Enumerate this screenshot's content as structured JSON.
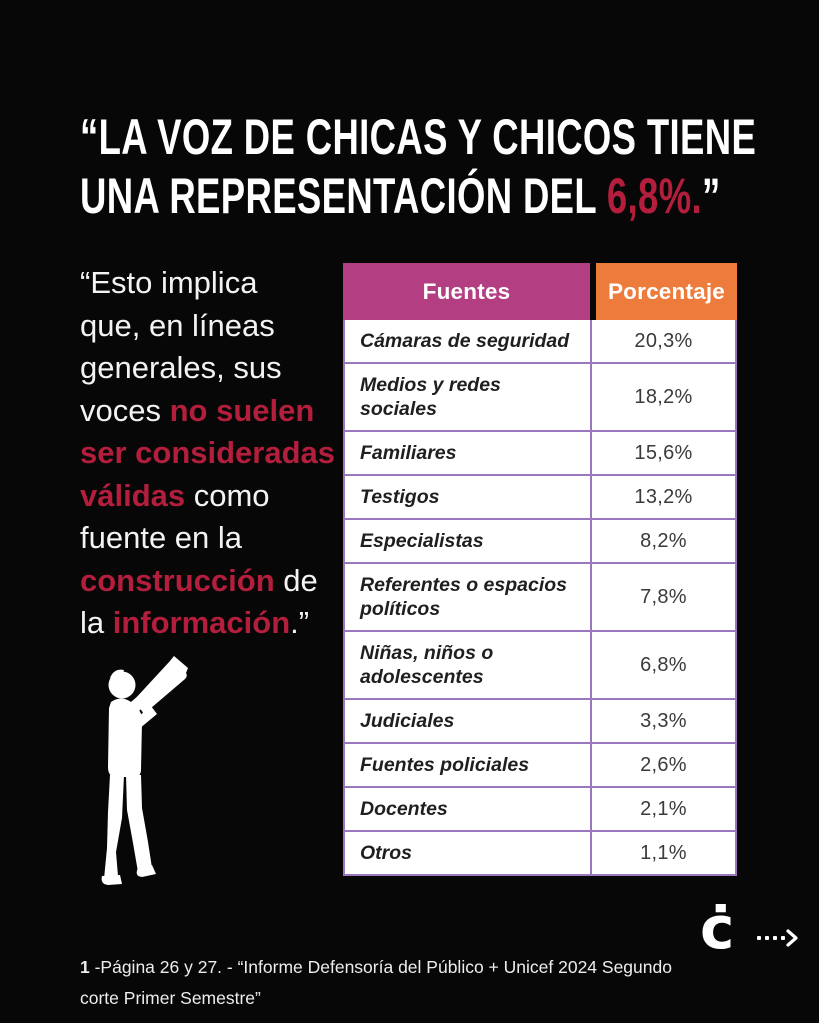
{
  "page": {
    "background": "#070707",
    "accent_red": "#b21e3c",
    "header_magenta": "#b43e82",
    "header_orange": "#ed7c3c",
    "table_border_purple": "#9b77bf"
  },
  "title": {
    "line1": "“LA VOZ DE CHICAS Y CHICOS TIENE",
    "line2_prefix": "UNA REPRESENTACIÓN DEL ",
    "line2_highlight": "6,8%.",
    "line2_suffix": "”"
  },
  "quote": {
    "lines": [
      [
        {
          "t": "“Esto implica",
          "red": false
        }
      ],
      [
        {
          "t": "que, en líneas",
          "red": false
        }
      ],
      [
        {
          "t": "generales, sus",
          "red": false
        }
      ],
      [
        {
          "t": "voces ",
          "red": false
        },
        {
          "t": "no suelen",
          "red": true
        }
      ],
      [
        {
          "t": "ser consideradas",
          "red": true
        }
      ],
      [
        {
          "t": "válidas",
          "red": true
        },
        {
          "t": " como",
          "red": false
        }
      ],
      [
        {
          "t": "fuente en la",
          "red": false
        }
      ],
      [
        {
          "t": "construcción",
          "red": true
        },
        {
          "t": " de",
          "red": false
        }
      ],
      [
        {
          "t": "la ",
          "red": false
        },
        {
          "t": "información",
          "red": true
        },
        {
          "t": ".”",
          "red": false
        }
      ]
    ]
  },
  "table": {
    "headers": {
      "fuentes": "Fuentes",
      "porcentaje": "Porcentaje"
    },
    "rows": [
      {
        "fuente": "Cámaras de seguridad",
        "porcentaje": "20,3%"
      },
      {
        "fuente": "Medios y redes sociales",
        "porcentaje": "18,2%"
      },
      {
        "fuente": "Familiares",
        "porcentaje": "15,6%"
      },
      {
        "fuente": "Testigos",
        "porcentaje": "13,2%"
      },
      {
        "fuente": "Especialistas",
        "porcentaje": "8,2%"
      },
      {
        "fuente": "Referentes o espacios políticos",
        "porcentaje": "7,8%"
      },
      {
        "fuente": "Niñas, niños o adolescentes",
        "porcentaje": "6,8%"
      },
      {
        "fuente": "Judiciales",
        "porcentaje": "3,3%"
      },
      {
        "fuente": "Fuentes policiales",
        "porcentaje": "2,6%"
      },
      {
        "fuente": "Docentes",
        "porcentaje": "2,1%"
      },
      {
        "fuente": "Otros",
        "porcentaje": "1,1%"
      }
    ]
  },
  "chart_data": {
    "type": "table",
    "title": "Fuentes / Porcentaje",
    "categories": [
      "Cámaras de seguridad",
      "Medios y redes sociales",
      "Familiares",
      "Testigos",
      "Especialistas",
      "Referentes o espacios políticos",
      "Niñas, niños o adolescentes",
      "Judiciales",
      "Fuentes policiales",
      "Docentes",
      "Otros"
    ],
    "values": [
      20.3,
      18.2,
      15.6,
      13.2,
      8.2,
      7.8,
      6.8,
      3.3,
      2.6,
      2.1,
      1.1
    ],
    "value_unit": "%"
  },
  "footnote": {
    "marker": "1",
    "text": " -Página 26 y 27. - “Informe Defensoría del Público + Unicef 2024 Segundo corte Primer Semestre”"
  },
  "logo": {
    "glyph": "ċ"
  },
  "icons": {
    "silhouette": "person-with-megaphone",
    "arrow": "dotted-arrow-right"
  }
}
